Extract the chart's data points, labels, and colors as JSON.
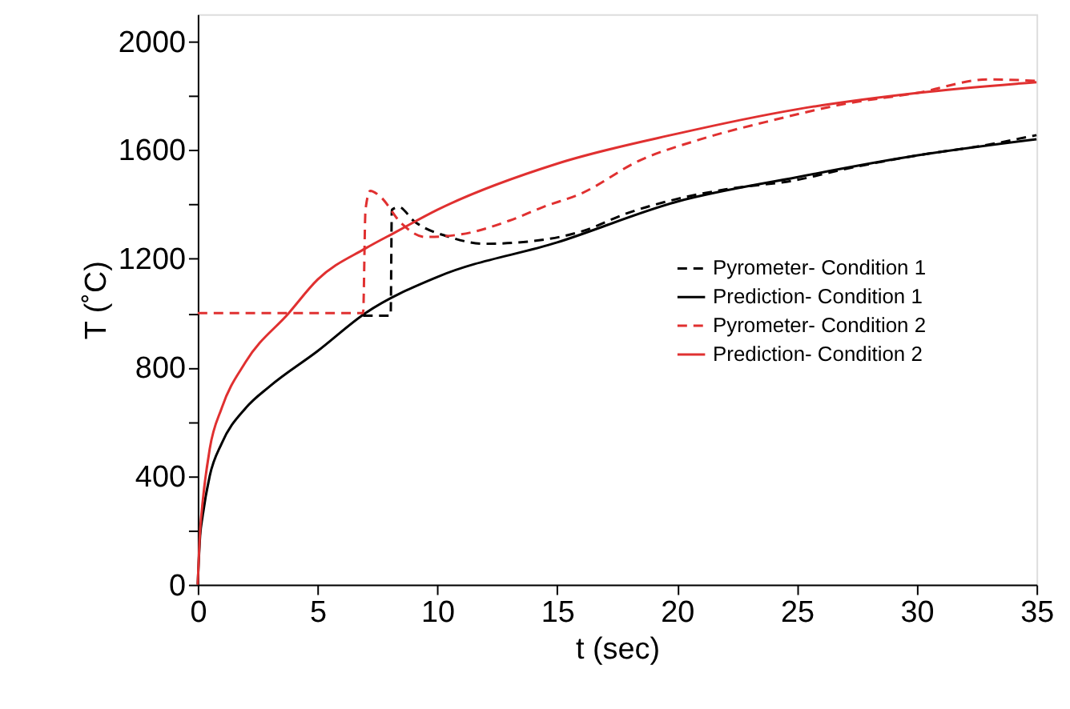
{
  "chart_data": {
    "type": "line",
    "xlabel": "t (sec)",
    "ylabel": "T (˚C)",
    "xlim": [
      0,
      35
    ],
    "xticks": [
      0,
      5,
      10,
      15,
      20,
      25,
      30,
      35
    ],
    "ylim": [
      0,
      2100
    ],
    "yticks": [
      0,
      {
        "value": 200,
        "label": null
      },
      400,
      {
        "value": 600,
        "label": null
      },
      800,
      {
        "value": 1000,
        "label": null
      },
      1200,
      {
        "value": 1400,
        "label": null
      },
      1600,
      {
        "value": 1800,
        "label": null
      },
      2000
    ],
    "grid": false,
    "legend": "right",
    "marker": "none",
    "series": [
      {
        "name": "Pyrometer- Condition 1",
        "color": "#000000",
        "line_style": "dashed",
        "x": [
          6.9,
          8.05,
          8.1,
          8.4,
          9,
          10.5,
          12,
          14,
          16,
          18,
          20,
          22,
          25,
          27,
          30,
          33,
          35
        ],
        "values": [
          990,
          990,
          1380,
          1390,
          1340,
          1280,
          1255,
          1265,
          1300,
          1370,
          1420,
          1455,
          1490,
          1530,
          1580,
          1620,
          1655
        ]
      },
      {
        "name": "Prediction- Condition 1",
        "color": "#000000",
        "line_style": "solid",
        "x": [
          0,
          0.1,
          0.2,
          0.5,
          1,
          2,
          3,
          5,
          7,
          10,
          15,
          20,
          25,
          30,
          35
        ],
        "values": [
          0,
          180,
          250,
          400,
          520,
          650,
          730,
          860,
          1000,
          1133,
          1260,
          1410,
          1500,
          1580,
          1640
        ]
      },
      {
        "name": "Pyrometer- Condition 2",
        "color": "#e03030",
        "line_style": "dashed",
        "x": [
          0,
          6.9,
          7.0,
          7.2,
          7.6,
          8.5,
          9.5,
          11,
          13,
          14.4,
          16,
          18.4,
          21,
          24,
          27,
          30,
          33,
          35
        ],
        "values": [
          1000,
          1000,
          1380,
          1450,
          1430,
          1330,
          1280,
          1290,
          1340,
          1390,
          1440,
          1560,
          1640,
          1710,
          1770,
          1810,
          1860,
          1855
        ]
      },
      {
        "name": "Prediction- Condition 2",
        "color": "#e03030",
        "line_style": "solid",
        "x": [
          0,
          0.1,
          0.2,
          0.5,
          1,
          2,
          3.8,
          5,
          7,
          8.3,
          10,
          15,
          20,
          25,
          30,
          35
        ],
        "values": [
          0,
          200,
          300,
          500,
          650,
          820,
          1000,
          1123,
          1238,
          1300,
          1380,
          1550,
          1660,
          1750,
          1810,
          1850
        ]
      }
    ]
  }
}
